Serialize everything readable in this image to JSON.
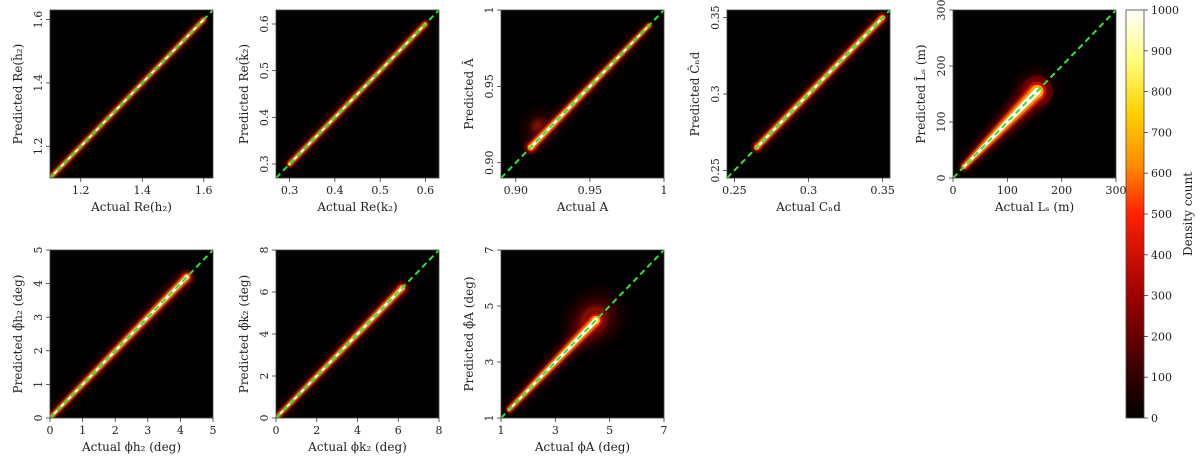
{
  "chart_data": [
    {
      "type": "heatmap",
      "id": "h2-real",
      "xlabel": "Actual Re(h₂)",
      "ylabel": "Predicted Re(ĥ₂)",
      "xlim": [
        1.1,
        1.63
      ],
      "ylim": [
        1.1,
        1.63
      ],
      "xticks": [
        1.2,
        1.4,
        1.6
      ],
      "yticks": [
        1.2,
        1.4,
        1.6
      ],
      "xtick_labels": [
        "1.2",
        "1.4",
        "1.6"
      ],
      "ytick_labels": [
        "1.2",
        "1.4",
        "1.6"
      ],
      "diag": [
        1.1,
        1.63
      ],
      "band": [
        [
          1.1,
          0.004
        ],
        [
          1.6,
          0.004
        ]
      ],
      "blob": null,
      "ref_line": "y = x"
    },
    {
      "type": "heatmap",
      "id": "k2-real",
      "xlabel": "Actual Re(k₂)",
      "ylabel": "Predicted Re(k̂₂)",
      "xlim": [
        0.27,
        0.63
      ],
      "ylim": [
        0.27,
        0.63
      ],
      "xticks": [
        0.3,
        0.4,
        0.5,
        0.6
      ],
      "yticks": [
        0.3,
        0.4,
        0.5,
        0.6
      ],
      "xtick_labels": [
        "0.3",
        "0.4",
        "0.5",
        "0.6"
      ],
      "ytick_labels": [
        "0.3",
        "0.4",
        "0.5",
        "0.6"
      ],
      "diag": [
        0.27,
        0.63
      ],
      "band": [
        [
          0.3,
          0.003
        ],
        [
          0.6,
          0.003
        ]
      ],
      "blob": null,
      "ref_line": "y = x"
    },
    {
      "type": "heatmap",
      "id": "A",
      "xlabel": "Actual A",
      "ylabel": "Predicted Â",
      "xlim": [
        0.89,
        1.0
      ],
      "ylim": [
        0.89,
        1.0
      ],
      "xticks": [
        0.9,
        0.95,
        1.0
      ],
      "yticks": [
        0.9,
        0.95,
        1.0
      ],
      "xtick_labels": [
        "0.90",
        "0.95",
        "1"
      ],
      "ytick_labels": [
        "0.90",
        "0.95",
        "1"
      ],
      "diag": [
        0.89,
        1.0
      ],
      "band": [
        [
          0.91,
          0.0015
        ],
        [
          0.99,
          0.0008
        ]
      ],
      "blob": [
        0.915,
        0.924,
        0.005
      ],
      "ref_line": "y = x"
    },
    {
      "type": "heatmap",
      "id": "Cnd",
      "xlabel": "Actual Cₙd",
      "ylabel": "Predicted Ĉₙd",
      "xlim": [
        0.245,
        0.355
      ],
      "ylim": [
        0.245,
        0.355
      ],
      "xticks": [
        0.25,
        0.3,
        0.35
      ],
      "yticks": [
        0.25,
        0.3,
        0.35
      ],
      "xtick_labels": [
        "0.25",
        "0.3",
        "0.35"
      ],
      "ytick_labels": [
        "0.25",
        "0.3",
        "0.35"
      ],
      "diag": [
        0.245,
        0.355
      ],
      "band": [
        [
          0.265,
          0.0012
        ],
        [
          0.35,
          0.0012
        ]
      ],
      "blob": null,
      "ref_line": "y = x"
    },
    {
      "type": "heatmap",
      "id": "Ls",
      "xlabel": "Actual Lₛ (m)",
      "ylabel": "Predicted L̂ₛ (m)",
      "xlim": [
        0,
        300
      ],
      "ylim": [
        0,
        300
      ],
      "xticks": [
        0,
        100,
        200,
        300
      ],
      "yticks": [
        0,
        100,
        200,
        300
      ],
      "xtick_labels": [
        "0",
        "100",
        "200",
        "300"
      ],
      "ytick_labels": [
        "0",
        "100",
        "200",
        "300"
      ],
      "diag": [
        0,
        300
      ],
      "band": [
        [
          20,
          3
        ],
        [
          155,
          9
        ]
      ],
      "blob": [
        150,
        160,
        18
      ],
      "ref_line": "y = x"
    },
    {
      "type": "heatmap",
      "id": "phi-h2",
      "xlabel": "Actual ϕh₂ (deg)",
      "ylabel": "Predicted ϕ̂h₂ (deg)",
      "xlim": [
        0,
        5
      ],
      "ylim": [
        0,
        5
      ],
      "xticks": [
        0,
        1,
        2,
        3,
        4,
        5
      ],
      "yticks": [
        0,
        1,
        2,
        3,
        4,
        5
      ],
      "xtick_labels": [
        "0",
        "1",
        "2",
        "3",
        "4",
        "5"
      ],
      "ytick_labels": [
        "0",
        "1",
        "2",
        "3",
        "4",
        "5"
      ],
      "diag": [
        0,
        5
      ],
      "band": [
        [
          0.05,
          0.04
        ],
        [
          4.2,
          0.07
        ]
      ],
      "blob": null,
      "ref_line": "y = x"
    },
    {
      "type": "heatmap",
      "id": "phi-k2",
      "xlabel": "Actual ϕk₂ (deg)",
      "ylabel": "Predicted ϕ̂k₂ (deg)",
      "xlim": [
        0,
        8
      ],
      "ylim": [
        0,
        8
      ],
      "xticks": [
        0,
        2,
        4,
        6,
        8
      ],
      "yticks": [
        0,
        2,
        4,
        6,
        8
      ],
      "xtick_labels": [
        "0",
        "2",
        "4",
        "6",
        "8"
      ],
      "ytick_labels": [
        "0",
        "2",
        "4",
        "6",
        "8"
      ],
      "diag": [
        0,
        8
      ],
      "band": [
        [
          0.05,
          0.06
        ],
        [
          6.2,
          0.1
        ]
      ],
      "blob": null,
      "ref_line": "y = x"
    },
    {
      "type": "heatmap",
      "id": "phi-A",
      "xlabel": "Actual ϕA (deg)",
      "ylabel": "Predicted ϕ̂A (deg)",
      "xlim": [
        1,
        7
      ],
      "ylim": [
        1,
        7
      ],
      "xticks": [
        1,
        3,
        5,
        7
      ],
      "yticks": [
        1,
        3,
        5,
        7
      ],
      "xtick_labels": [
        "1",
        "3",
        "5",
        "7"
      ],
      "ytick_labels": [
        "1",
        "3",
        "5",
        "7"
      ],
      "diag": [
        1,
        7
      ],
      "band": [
        [
          1.3,
          0.05
        ],
        [
          4.5,
          0.12
        ]
      ],
      "blob": [
        4.4,
        4.5,
        0.6
      ],
      "ref_line": "y = x"
    }
  ],
  "colorbar": {
    "title": "Density count",
    "min": 0,
    "max": 1000,
    "ticks": [
      0,
      100,
      200,
      300,
      400,
      500,
      600,
      700,
      800,
      900,
      1000
    ],
    "tick_labels": [
      "0",
      "100",
      "200",
      "300",
      "400",
      "500",
      "600",
      "700",
      "800",
      "900",
      "1000"
    ],
    "colormap": "hot",
    "stops": [
      "#000000",
      "#3b0000",
      "#a00000",
      "#ff2000",
      "#ff8c00",
      "#ffd200",
      "#ffff80",
      "#ffffff"
    ]
  },
  "colors": {
    "background": "#000000",
    "diagonal": "#2ee62e",
    "frame": "#444444"
  }
}
